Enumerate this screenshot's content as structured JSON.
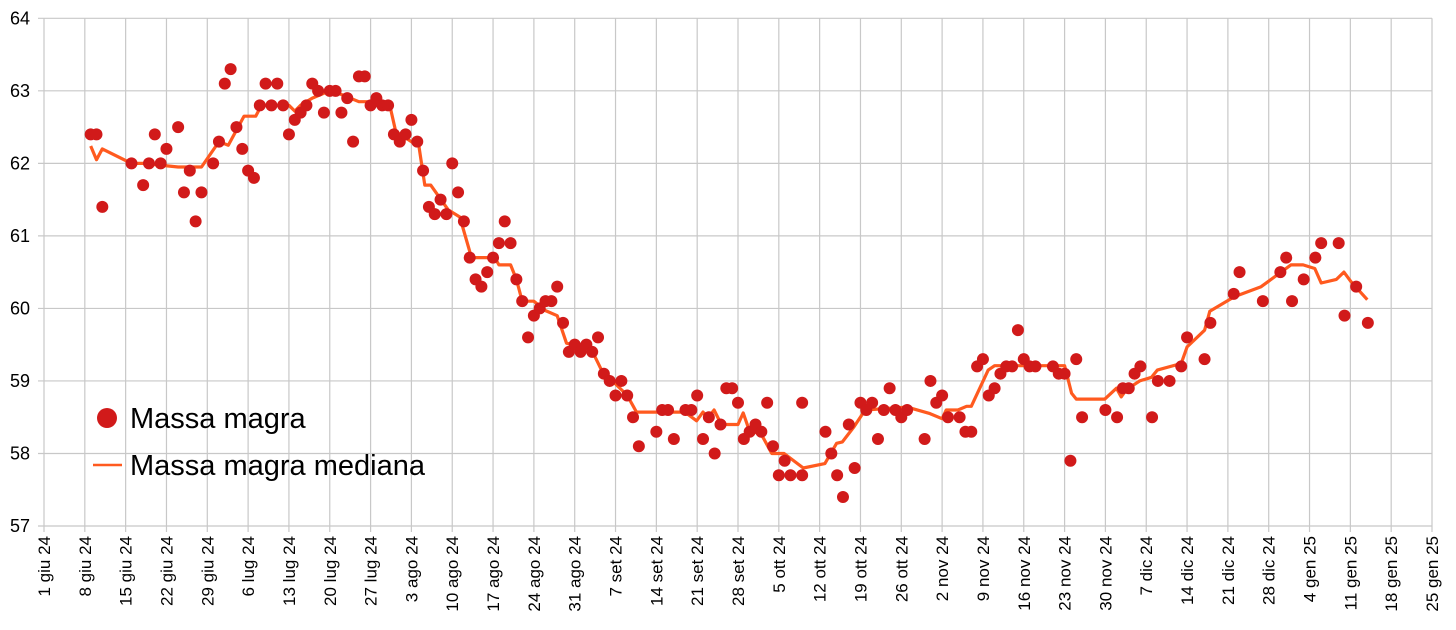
{
  "chart_data": {
    "type": "scatter",
    "title": "",
    "xlabel": "",
    "ylabel": "",
    "x_unit": "days since 1 giu 24",
    "ylim": [
      57,
      64
    ],
    "y_ticks": [
      57,
      58,
      59,
      60,
      61,
      62,
      63,
      64
    ],
    "xlim": [
      0,
      238
    ],
    "x_tick_step_days": 7,
    "x_tick_labels": [
      "1 giu 24",
      "8 giu 24",
      "15 giu 24",
      "22 giu 24",
      "29 giu 24",
      "6 lug 24",
      "13 lug 24",
      "20 lug 24",
      "27 lug 24",
      "3 ago 24",
      "10 ago 24",
      "17 ago 24",
      "24 ago 24",
      "31 ago 24",
      "7 set 24",
      "14 set 24",
      "21 set 24",
      "28 set 24",
      "5 ott 24",
      "12 ott 24",
      "19 ott 24",
      "26 ott 24",
      "2 nov 24",
      "9 nov 24",
      "16 nov 24",
      "23 nov 24",
      "30 nov 24",
      "7 dic 24",
      "14 dic 24",
      "21 dic 24",
      "28 dic 24",
      "4 gen 25",
      "11 gen 25",
      "18 gen 25",
      "25 gen 25"
    ],
    "grid": true,
    "legend_position": "lower-left",
    "series": [
      {
        "name": "Massa magra",
        "kind": "scatter",
        "color": "#d11a1a",
        "points": [
          [
            8,
            62.4
          ],
          [
            9,
            62.4
          ],
          [
            10,
            61.4
          ],
          [
            15,
            62.0
          ],
          [
            17,
            61.7
          ],
          [
            18,
            62.0
          ],
          [
            19,
            62.4
          ],
          [
            20,
            62.0
          ],
          [
            21,
            62.2
          ],
          [
            23,
            62.5
          ],
          [
            24,
            61.6
          ],
          [
            25,
            61.9
          ],
          [
            26,
            61.2
          ],
          [
            27,
            61.6
          ],
          [
            29,
            62.0
          ],
          [
            30,
            62.3
          ],
          [
            31,
            63.1
          ],
          [
            32,
            63.3
          ],
          [
            33,
            62.5
          ],
          [
            34,
            62.2
          ],
          [
            35,
            61.9
          ],
          [
            36,
            61.8
          ],
          [
            37,
            62.8
          ],
          [
            38,
            63.1
          ],
          [
            39,
            62.8
          ],
          [
            40,
            63.1
          ],
          [
            41,
            62.8
          ],
          [
            42,
            62.4
          ],
          [
            43,
            62.6
          ],
          [
            44,
            62.7
          ],
          [
            45,
            62.8
          ],
          [
            46,
            63.1
          ],
          [
            47,
            63.0
          ],
          [
            48,
            62.7
          ],
          [
            49,
            63.0
          ],
          [
            50,
            63.0
          ],
          [
            51,
            62.7
          ],
          [
            52,
            62.9
          ],
          [
            53,
            62.3
          ],
          [
            54,
            63.2
          ],
          [
            55,
            63.2
          ],
          [
            56,
            62.8
          ],
          [
            57,
            62.9
          ],
          [
            58,
            62.8
          ],
          [
            59,
            62.8
          ],
          [
            60,
            62.4
          ],
          [
            61,
            62.3
          ],
          [
            62,
            62.4
          ],
          [
            63,
            62.6
          ],
          [
            64,
            62.3
          ],
          [
            65,
            61.9
          ],
          [
            66,
            61.4
          ],
          [
            67,
            61.3
          ],
          [
            68,
            61.5
          ],
          [
            69,
            61.3
          ],
          [
            70,
            62.0
          ],
          [
            71,
            61.6
          ],
          [
            72,
            61.2
          ],
          [
            73,
            60.7
          ],
          [
            74,
            60.4
          ],
          [
            75,
            60.3
          ],
          [
            76,
            60.5
          ],
          [
            77,
            60.7
          ],
          [
            78,
            60.9
          ],
          [
            79,
            61.2
          ],
          [
            80,
            60.9
          ],
          [
            81,
            60.4
          ],
          [
            82,
            60.1
          ],
          [
            83,
            59.6
          ],
          [
            84,
            59.9
          ],
          [
            85,
            60.0
          ],
          [
            86,
            60.1
          ],
          [
            87,
            60.1
          ],
          [
            88,
            60.3
          ],
          [
            89,
            59.8
          ],
          [
            90,
            59.4
          ],
          [
            91,
            59.5
          ],
          [
            92,
            59.4
          ],
          [
            93,
            59.5
          ],
          [
            94,
            59.4
          ],
          [
            95,
            59.6
          ],
          [
            96,
            59.1
          ],
          [
            97,
            59.0
          ],
          [
            98,
            58.8
          ],
          [
            99,
            59.0
          ],
          [
            100,
            58.8
          ],
          [
            101,
            58.5
          ],
          [
            102,
            58.1
          ],
          [
            105,
            58.3
          ],
          [
            106,
            58.6
          ],
          [
            107,
            58.6
          ],
          [
            108,
            58.2
          ],
          [
            110,
            58.6
          ],
          [
            111,
            58.6
          ],
          [
            112,
            58.8
          ],
          [
            113,
            58.2
          ],
          [
            114,
            58.5
          ],
          [
            115,
            58.0
          ],
          [
            116,
            58.4
          ],
          [
            117,
            58.9
          ],
          [
            118,
            58.9
          ],
          [
            119,
            58.7
          ],
          [
            120,
            58.2
          ],
          [
            121,
            58.3
          ],
          [
            122,
            58.4
          ],
          [
            123,
            58.3
          ],
          [
            124,
            58.7
          ],
          [
            125,
            58.1
          ],
          [
            126,
            57.7
          ],
          [
            127,
            57.9
          ],
          [
            128,
            57.7
          ],
          [
            130,
            57.7
          ],
          [
            130,
            58.7
          ],
          [
            134,
            58.3
          ],
          [
            135,
            58.0
          ],
          [
            136,
            57.7
          ],
          [
            137,
            57.4
          ],
          [
            138,
            58.4
          ],
          [
            139,
            57.8
          ],
          [
            140,
            58.7
          ],
          [
            141,
            58.6
          ],
          [
            142,
            58.7
          ],
          [
            143,
            58.2
          ],
          [
            144,
            58.6
          ],
          [
            145,
            58.9
          ],
          [
            146,
            58.6
          ],
          [
            147,
            58.5
          ],
          [
            148,
            58.6
          ],
          [
            151,
            58.2
          ],
          [
            152,
            59.0
          ],
          [
            153,
            58.7
          ],
          [
            154,
            58.8
          ],
          [
            155,
            58.5
          ],
          [
            157,
            58.5
          ],
          [
            158,
            58.3
          ],
          [
            159,
            58.3
          ],
          [
            160,
            59.2
          ],
          [
            161,
            59.3
          ],
          [
            162,
            58.8
          ],
          [
            163,
            58.9
          ],
          [
            164,
            59.1
          ],
          [
            165,
            59.2
          ],
          [
            166,
            59.2
          ],
          [
            167,
            59.7
          ],
          [
            168,
            59.3
          ],
          [
            169,
            59.2
          ],
          [
            170,
            59.2
          ],
          [
            173,
            59.2
          ],
          [
            174,
            59.1
          ],
          [
            175,
            59.1
          ],
          [
            176,
            57.9
          ],
          [
            177,
            59.3
          ],
          [
            178,
            58.5
          ],
          [
            182,
            58.6
          ],
          [
            184,
            58.5
          ],
          [
            185,
            58.9
          ],
          [
            186,
            58.9
          ],
          [
            187,
            59.1
          ],
          [
            188,
            59.2
          ],
          [
            190,
            58.5
          ],
          [
            191,
            59.0
          ],
          [
            193,
            59.0
          ],
          [
            195,
            59.2
          ],
          [
            196,
            59.6
          ],
          [
            199,
            59.3
          ],
          [
            200,
            59.8
          ],
          [
            204,
            60.2
          ],
          [
            205,
            60.5
          ],
          [
            209,
            60.1
          ],
          [
            212,
            60.5
          ],
          [
            213,
            60.7
          ],
          [
            214,
            60.1
          ],
          [
            216,
            60.4
          ],
          [
            218,
            60.7
          ],
          [
            219,
            60.9
          ],
          [
            222,
            60.9
          ],
          [
            223,
            59.9
          ],
          [
            225,
            60.3
          ],
          [
            227,
            59.8
          ]
        ]
      },
      {
        "name": "Massa magra mediana",
        "kind": "line",
        "color": "#ff5a1f",
        "points": [
          [
            8,
            62.24
          ],
          [
            9,
            62.05
          ],
          [
            10,
            62.2
          ],
          [
            15,
            62.0
          ],
          [
            17,
            62.0
          ],
          [
            23,
            61.95
          ],
          [
            27,
            61.95
          ],
          [
            30,
            62.3
          ],
          [
            31.6,
            62.25
          ],
          [
            34.3,
            62.65
          ],
          [
            36.3,
            62.65
          ],
          [
            37.3,
            62.8
          ],
          [
            42,
            62.8
          ],
          [
            43,
            62.72
          ],
          [
            44,
            62.8
          ],
          [
            46,
            62.9
          ],
          [
            49,
            63.0
          ],
          [
            51,
            62.95
          ],
          [
            54,
            62.85
          ],
          [
            55.4,
            62.85
          ],
          [
            56.3,
            62.8
          ],
          [
            59.3,
            62.8
          ],
          [
            60.3,
            62.44
          ],
          [
            64.3,
            62.23
          ],
          [
            65.3,
            61.7
          ],
          [
            66.3,
            61.7
          ],
          [
            69.3,
            61.36
          ],
          [
            71.3,
            61.26
          ],
          [
            73.3,
            60.7
          ],
          [
            77.3,
            60.7
          ],
          [
            78,
            60.6
          ],
          [
            80,
            60.6
          ],
          [
            81,
            60.4
          ],
          [
            82,
            60.1
          ],
          [
            84,
            60.1
          ],
          [
            86,
            59.97
          ],
          [
            88,
            59.9
          ],
          [
            89.6,
            59.52
          ],
          [
            93.9,
            59.43
          ],
          [
            95.6,
            59.15
          ],
          [
            100,
            58.8
          ],
          [
            101.6,
            58.57
          ],
          [
            109.9,
            58.57
          ],
          [
            111.9,
            58.45
          ],
          [
            113,
            58.57
          ],
          [
            113.9,
            58.5
          ],
          [
            114.9,
            58.6
          ],
          [
            115.9,
            58.44
          ],
          [
            117,
            58.4
          ],
          [
            119,
            58.4
          ],
          [
            119.9,
            58.56
          ],
          [
            121,
            58.3
          ],
          [
            122.9,
            58.28
          ],
          [
            124.8,
            58.0
          ],
          [
            126.9,
            58.0
          ],
          [
            130.2,
            57.8
          ],
          [
            133.9,
            57.86
          ],
          [
            134.9,
            58.0
          ],
          [
            135.9,
            58.14
          ],
          [
            136.9,
            58.16
          ],
          [
            138.9,
            58.37
          ],
          [
            140.8,
            58.6
          ],
          [
            148,
            58.64
          ],
          [
            151.9,
            58.55
          ],
          [
            154,
            58.48
          ],
          [
            154.7,
            58.6
          ],
          [
            156.7,
            58.6
          ],
          [
            158.2,
            58.65
          ],
          [
            159,
            58.65
          ],
          [
            161.9,
            59.15
          ],
          [
            163,
            59.21
          ],
          [
            175,
            59.21
          ],
          [
            176.2,
            58.83
          ],
          [
            177,
            58.75
          ],
          [
            181.9,
            58.75
          ],
          [
            183.9,
            58.9
          ],
          [
            184.7,
            58.78
          ],
          [
            185.6,
            58.88
          ],
          [
            187.9,
            59.0
          ],
          [
            189.9,
            59.05
          ],
          [
            190.9,
            59.15
          ],
          [
            195,
            59.24
          ],
          [
            196,
            59.47
          ],
          [
            199,
            59.7
          ],
          [
            199.9,
            59.96
          ],
          [
            204.1,
            60.16
          ],
          [
            208.7,
            60.3
          ],
          [
            213.8,
            60.6
          ],
          [
            215.9,
            60.6
          ],
          [
            217.9,
            60.55
          ],
          [
            219,
            60.35
          ],
          [
            221.6,
            60.4
          ],
          [
            222.9,
            60.5
          ],
          [
            224.1,
            60.37
          ],
          [
            226.9,
            60.12
          ]
        ]
      }
    ]
  }
}
